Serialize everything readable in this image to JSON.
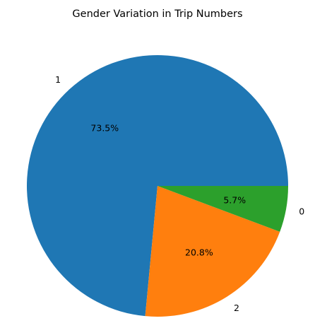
{
  "chart_data": {
    "type": "pie",
    "title": "Gender Variation in Trip Numbers",
    "slices": [
      {
        "label": "1",
        "value": 73.5,
        "pct_label": "73.5%",
        "color": "#1f77b4"
      },
      {
        "label": "2",
        "value": 20.8,
        "pct_label": "20.8%",
        "color": "#ff7f0e"
      },
      {
        "label": "0",
        "value": 5.7,
        "pct_label": "5.7%",
        "color": "#2ca02c"
      }
    ],
    "legend": "none"
  }
}
